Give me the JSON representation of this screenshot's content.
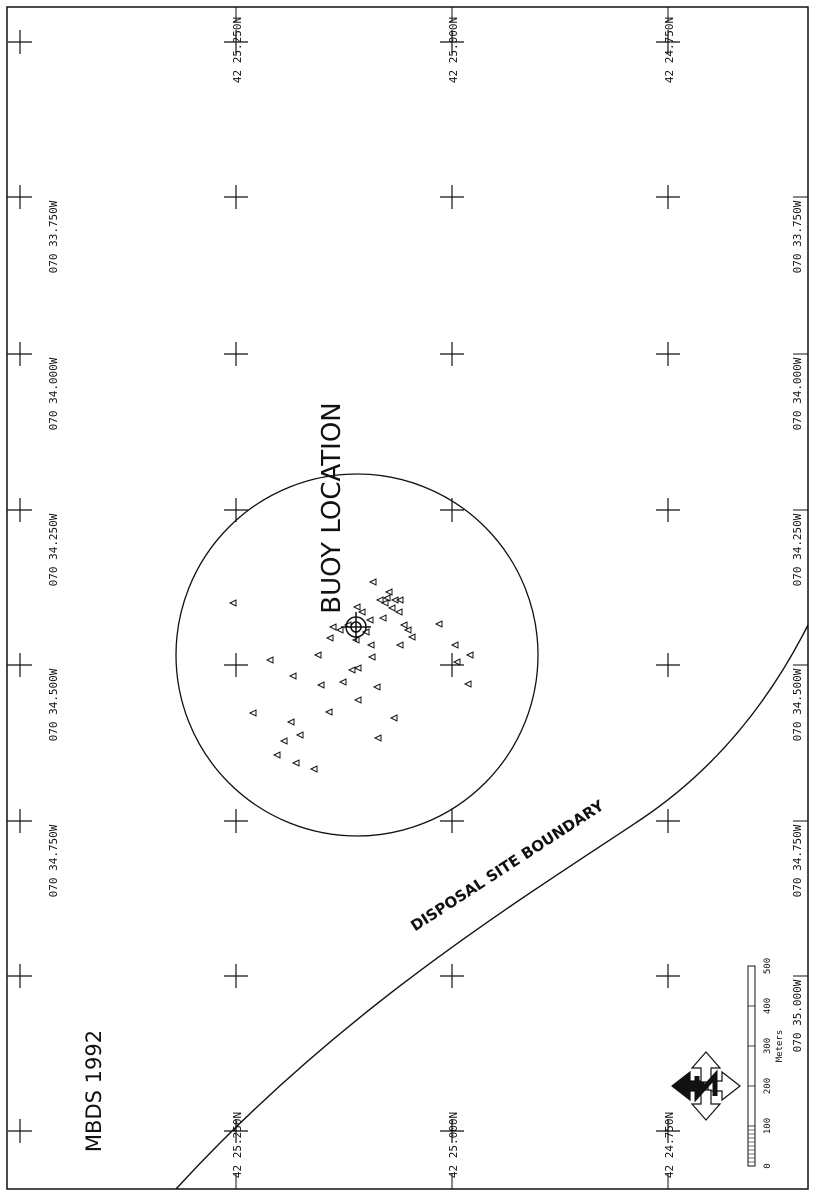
{
  "title": "MBDS 1992",
  "buoy_label": "BUOY LOCATION",
  "boundary_label": "DISPOSAL SITE BOUNDARY",
  "longitude_labels": [
    "070 33.750W",
    "070 34.000W",
    "070 34.250W",
    "070 34.500W",
    "070 34.750W",
    "070 35.000W"
  ],
  "latitude_labels": [
    "42 25.250N",
    "42 25.000N",
    "42 24.750N"
  ],
  "scale_bar": {
    "unit_label": "Meters",
    "ticks": [
      "0",
      "100",
      "200",
      "300",
      "400",
      "500"
    ]
  },
  "colors": {
    "ink": "#111111",
    "paper": "#ffffff"
  },
  "icons": [
    "north-arrow-icon",
    "buoy-target-icon",
    "triangle-sample-marker"
  ],
  "sample_points": [
    [
      233,
      603
    ],
    [
      270,
      660
    ],
    [
      293,
      676
    ],
    [
      318,
      655
    ],
    [
      321,
      685
    ],
    [
      330,
      638
    ],
    [
      333,
      627
    ],
    [
      340,
      630
    ],
    [
      343,
      682
    ],
    [
      348,
      625
    ],
    [
      356,
      640
    ],
    [
      352,
      670
    ],
    [
      358,
      668
    ],
    [
      362,
      612
    ],
    [
      366,
      632
    ],
    [
      370,
      620
    ],
    [
      373,
      582
    ],
    [
      371,
      645
    ],
    [
      377,
      687
    ],
    [
      380,
      600
    ],
    [
      383,
      618
    ],
    [
      385,
      603
    ],
    [
      387,
      598
    ],
    [
      389,
      592
    ],
    [
      392,
      608
    ],
    [
      395,
      600
    ],
    [
      399,
      612
    ],
    [
      400,
      645
    ],
    [
      404,
      625
    ],
    [
      408,
      630
    ],
    [
      412,
      637
    ],
    [
      400,
      600
    ],
    [
      372,
      657
    ],
    [
      358,
      700
    ],
    [
      378,
      738
    ],
    [
      394,
      718
    ],
    [
      439,
      624
    ],
    [
      455,
      645
    ],
    [
      457,
      662
    ],
    [
      470,
      655
    ],
    [
      468,
      684
    ],
    [
      253,
      713
    ],
    [
      291,
      722
    ],
    [
      284,
      741
    ],
    [
      277,
      755
    ],
    [
      296,
      763
    ],
    [
      300,
      735
    ],
    [
      314,
      769
    ],
    [
      329,
      712
    ],
    [
      357,
      607
    ]
  ]
}
